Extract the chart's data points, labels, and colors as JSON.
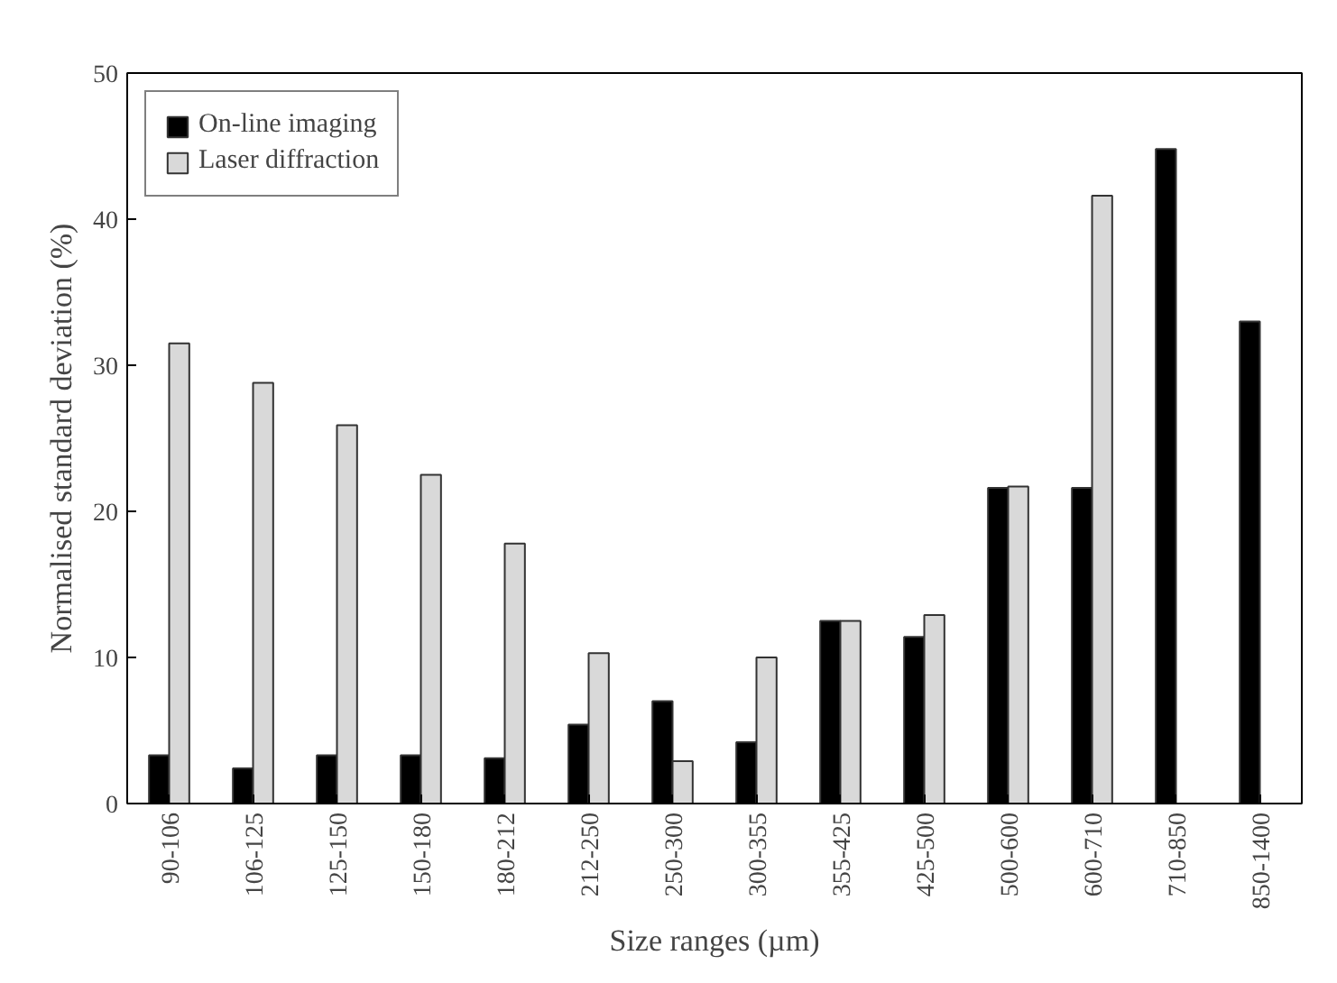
{
  "chart_data": {
    "type": "bar",
    "xlabel": "Size ranges (µm)",
    "ylabel": "Normalised standard deviation (%)",
    "categories": [
      "90-106",
      "106-125",
      "125-150",
      "150-180",
      "180-212",
      "212-250",
      "250-300",
      "300-355",
      "355-425",
      "425-500",
      "500-600",
      "600-710",
      "710-850",
      "850-1400"
    ],
    "series": [
      {
        "name": "On-line imaging",
        "color": "#000000",
        "values": [
          3.3,
          2.4,
          3.3,
          3.3,
          3.1,
          5.4,
          7.0,
          4.2,
          12.5,
          11.4,
          21.6,
          21.6,
          44.8,
          33.0
        ]
      },
      {
        "name": "Laser diffraction",
        "color": "#d9d9d9",
        "values": [
          31.5,
          28.8,
          25.9,
          22.5,
          17.8,
          10.3,
          2.9,
          10.0,
          12.5,
          12.9,
          21.7,
          41.6,
          null,
          null
        ]
      }
    ],
    "ylim": [
      0,
      50
    ],
    "yticks": [
      0,
      10,
      20,
      30,
      40,
      50
    ],
    "grid": false,
    "legend": "top left"
  }
}
